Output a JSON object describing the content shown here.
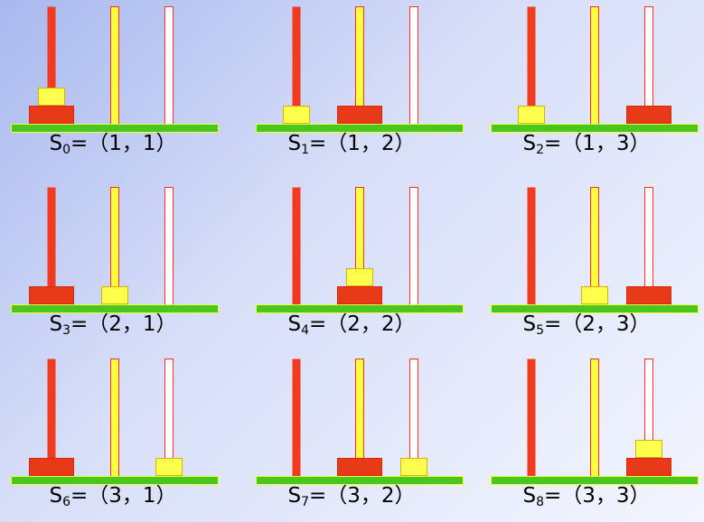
{
  "title": "",
  "states": [
    {
      "symbol": "S",
      "index": "0",
      "equals": "=",
      "value": "（1，1）",
      "disks": [
        [
          "large",
          "small"
        ],
        [],
        []
      ]
    },
    {
      "symbol": "S",
      "index": "1",
      "equals": "=",
      "value": "（1，2）",
      "disks": [
        [
          "small"
        ],
        [
          "large"
        ],
        []
      ]
    },
    {
      "symbol": "S",
      "index": "2",
      "equals": "=",
      "value": "（1，3）",
      "disks": [
        [
          "small"
        ],
        [],
        [
          "large"
        ]
      ]
    },
    {
      "symbol": "S",
      "index": "3",
      "equals": "=",
      "value": "（2，1）",
      "disks": [
        [
          "large"
        ],
        [
          "small"
        ],
        []
      ]
    },
    {
      "symbol": "S",
      "index": "4",
      "equals": "=",
      "value": "（2，2）",
      "disks": [
        [],
        [
          "large",
          "small"
        ],
        []
      ]
    },
    {
      "symbol": "S",
      "index": "5",
      "equals": "=",
      "value": "（2，3）",
      "disks": [
        [],
        [
          "small"
        ],
        [
          "large"
        ]
      ]
    },
    {
      "symbol": "S",
      "index": "6",
      "equals": "=",
      "value": "（3，1）",
      "disks": [
        [
          "large"
        ],
        [],
        [
          "small"
        ]
      ]
    },
    {
      "symbol": "S",
      "index": "7",
      "equals": "=",
      "value": "（3，2）",
      "disks": [
        [],
        [
          "large"
        ],
        [
          "small"
        ]
      ]
    },
    {
      "symbol": "S",
      "index": "8",
      "equals": "=",
      "value": "（3，3）",
      "disks": [
        [],
        [],
        [
          "large",
          "small"
        ]
      ]
    }
  ],
  "colors": {
    "peg1": "#f23a1f",
    "peg2": "#ffff3d",
    "peg2_border": "#ff2a2a",
    "peg3": "#ffffff",
    "peg3_border": "#ff2a2a",
    "base": "#49c61f",
    "base_border": "#ffff3d",
    "disk_large": "#e83a18",
    "disk_large_border": "#d82510",
    "disk_small": "#ffff4d",
    "disk_small_border": "#d6b300"
  }
}
